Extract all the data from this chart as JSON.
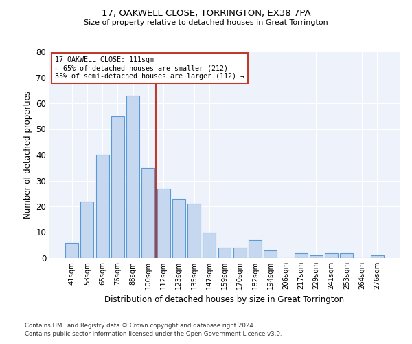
{
  "title1": "17, OAKWELL CLOSE, TORRINGTON, EX38 7PA",
  "title2": "Size of property relative to detached houses in Great Torrington",
  "xlabel": "Distribution of detached houses by size in Great Torrington",
  "ylabel": "Number of detached properties",
  "categories": [
    "41sqm",
    "53sqm",
    "65sqm",
    "76sqm",
    "88sqm",
    "100sqm",
    "112sqm",
    "123sqm",
    "135sqm",
    "147sqm",
    "159sqm",
    "170sqm",
    "182sqm",
    "194sqm",
    "206sqm",
    "217sqm",
    "229sqm",
    "241sqm",
    "253sqm",
    "264sqm",
    "276sqm"
  ],
  "values": [
    6,
    22,
    40,
    55,
    63,
    35,
    27,
    23,
    21,
    10,
    4,
    4,
    7,
    3,
    0,
    2,
    1,
    2,
    2,
    0,
    1
  ],
  "bar_color": "#c5d8f0",
  "bar_edge_color": "#5b9bd5",
  "background_color": "#eef3fb",
  "grid_color": "#ffffff",
  "annotation_box_color": "#c0392b",
  "vline_x_index": 6,
  "ann_line1": "17 OAKWELL CLOSE: 111sqm",
  "ann_line2": "← 65% of detached houses are smaller (212)",
  "ann_line3": "35% of semi-detached houses are larger (112) →",
  "footnote1": "Contains HM Land Registry data © Crown copyright and database right 2024.",
  "footnote2": "Contains public sector information licensed under the Open Government Licence v3.0.",
  "ylim": [
    0,
    80
  ],
  "yticks": [
    0,
    10,
    20,
    30,
    40,
    50,
    60,
    70,
    80
  ]
}
